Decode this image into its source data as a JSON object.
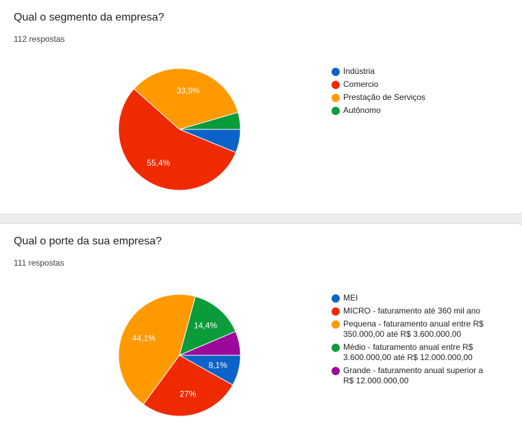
{
  "chart_data": [
    {
      "type": "pie",
      "title": "Qual o segmento da empresa?",
      "subtitle": "112 respostas",
      "categories": [
        "Indústria",
        "Comercio",
        "Prestação de Serviços",
        "Autônomo"
      ],
      "values": [
        6.2,
        55.4,
        33.9,
        4.5
      ],
      "data_labels": [
        "",
        "55,4%",
        "33,9%",
        ""
      ],
      "colors": [
        "#0b63c9",
        "#f02a00",
        "#ff9900",
        "#0a9c39"
      ],
      "legend_position": "right"
    },
    {
      "type": "pie",
      "title": "Qual o porte da sua empresa?",
      "subtitle": "111 respostas",
      "categories": [
        "MEI",
        "MICRO - faturamento até 360 mil ano",
        "Pequena - faturamento anual entre R$ 350.000,00 até R$ 3.600.000,00",
        "Médio - faturamento anual entre R$ 3.600.000,00 até R$ 12.000.000,00",
        "Grande - faturamento anual superior a R$ 12.000.000,00"
      ],
      "values": [
        8.1,
        27,
        44.1,
        14.4,
        6.4
      ],
      "data_labels": [
        "8,1%",
        "27%",
        "44,1%",
        "14,4%",
        ""
      ],
      "colors": [
        "#0b63c9",
        "#f02a00",
        "#ff9900",
        "#0a9c39",
        "#9c089a"
      ],
      "legend_position": "right"
    }
  ]
}
